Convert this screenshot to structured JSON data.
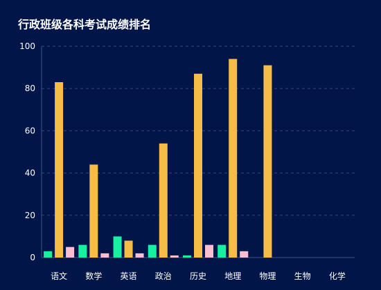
{
  "chart_data": {
    "type": "bar",
    "title": "行政班级各科考试成绩排名",
    "xlabel": "",
    "ylabel": "",
    "ylim": [
      0,
      100
    ],
    "yticks": [
      0,
      20,
      40,
      60,
      80,
      100
    ],
    "grid": true,
    "categories": [
      "语文",
      "数学",
      "英语",
      "政治",
      "历史",
      "地理",
      "物理",
      "生物",
      "化学"
    ],
    "series": [
      {
        "color": "#16f0a0",
        "values": [
          3,
          6,
          10,
          6,
          1,
          6,
          null,
          null,
          null
        ]
      },
      {
        "color": "#f5bd45",
        "values": [
          83,
          44,
          8,
          54,
          87,
          94,
          91,
          null,
          null
        ]
      },
      {
        "color": "#f9bfd0",
        "values": [
          5,
          2,
          2,
          1,
          6,
          3,
          null,
          null,
          null
        ]
      }
    ]
  }
}
